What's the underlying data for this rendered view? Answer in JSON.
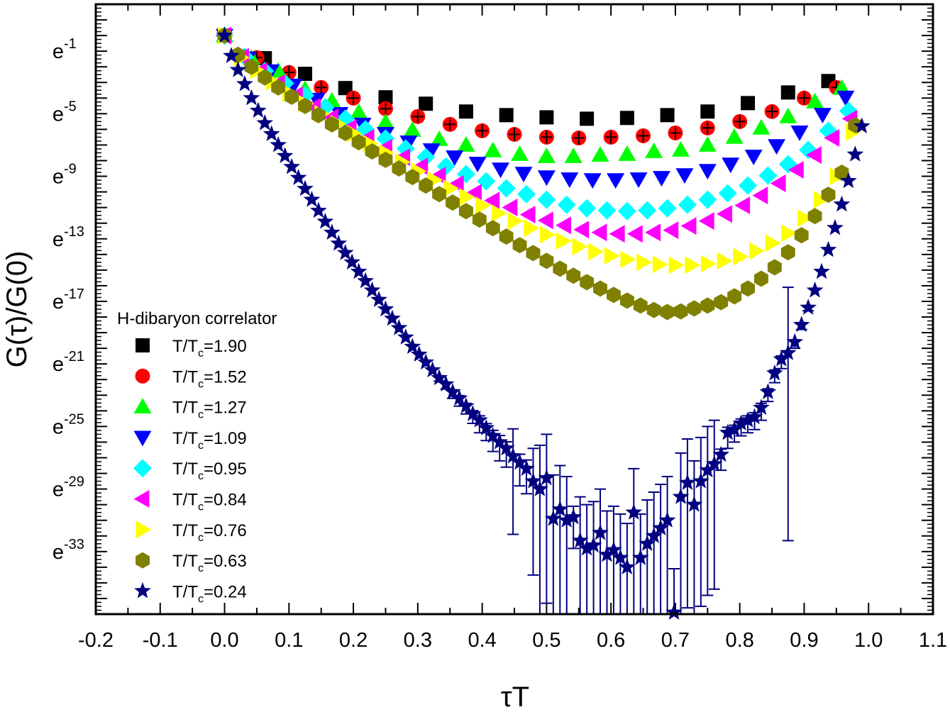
{
  "chart_data": {
    "type": "scatter",
    "title": "",
    "xlabel": "τT",
    "ylabel": "G(τ)/G(0)",
    "y_scale": "log_e",
    "y_value_units": "natural-log exponent n, where G(τ)/G(0) = e^n",
    "xlim": [
      -0.2,
      1.1
    ],
    "ylim_exponent": [
      -37,
      2
    ],
    "x_ticks": [
      "-0.2",
      "-0.1",
      "0.0",
      "0.1",
      "0.2",
      "0.3",
      "0.4",
      "0.5",
      "0.6",
      "0.7",
      "0.8",
      "0.9",
      "1.0",
      "1.1"
    ],
    "x_tick_values": [
      -0.2,
      -0.1,
      0.0,
      0.1,
      0.2,
      0.3,
      0.4,
      0.5,
      0.6,
      0.7,
      0.8,
      0.9,
      1.0,
      1.1
    ],
    "y_ticks": [
      {
        "base": "e",
        "exp": "-1",
        "value": -1
      },
      {
        "base": "e",
        "exp": "-5",
        "value": -5
      },
      {
        "base": "e",
        "exp": "-9",
        "value": -9
      },
      {
        "base": "e",
        "exp": "-13",
        "value": -13
      },
      {
        "base": "e",
        "exp": "-17",
        "value": -17
      },
      {
        "base": "e",
        "exp": "-21",
        "value": -21
      },
      {
        "base": "e",
        "exp": "-25",
        "value": -25
      },
      {
        "base": "e",
        "exp": "-29",
        "value": -29
      },
      {
        "base": "e",
        "exp": "-33",
        "value": -33
      }
    ],
    "grid": false,
    "legend": {
      "title": "H-dibaryon correlator",
      "placement": "lower-left",
      "entry_prefix": "T/T",
      "entry_sub": "c"
    },
    "series": [
      {
        "name": "T/Tc=1.90",
        "label_value": "=1.90",
        "marker": "square",
        "color": "#000000",
        "n_t": 16,
        "values": [
          0,
          -1.45,
          -2.45,
          -3.36,
          -3.95,
          -4.36,
          -4.86,
          -5.09,
          -5.23,
          -5.32,
          -5.27,
          -5.09,
          -4.86,
          -4.32,
          -3.64,
          -2.91
        ]
      },
      {
        "name": "T/Tc=1.52",
        "label_value": "=1.52",
        "marker": "circle",
        "color": "#ff0000",
        "n_t": 20,
        "errbar_color": "#000000",
        "values": [
          0,
          -1.41,
          -2.36,
          -3.32,
          -4.0,
          -4.68,
          -5.18,
          -5.68,
          -6.09,
          -6.32,
          -6.5,
          -6.55,
          -6.5,
          -6.41,
          -6.23,
          -5.91,
          -5.5,
          -4.86,
          -4.0,
          -3.32
        ]
      },
      {
        "name": "T/Tc=1.27",
        "label_value": "=1.27",
        "marker": "triangle-up",
        "color": "#00ff00",
        "n_t": 24,
        "values": [
          0,
          -1.45,
          -2.27,
          -3.45,
          -4.18,
          -4.91,
          -5.55,
          -6.05,
          -6.64,
          -7.0,
          -7.36,
          -7.59,
          -7.73,
          -7.73,
          -7.64,
          -7.59,
          -7.41,
          -7.32,
          -7.0,
          -6.5,
          -5.91,
          -5.18,
          -4.23,
          -3.36
        ]
      },
      {
        "name": "T/Tc=1.09",
        "label_value": "=1.09",
        "marker": "triangle-down",
        "color": "#0000ff",
        "n_t": 28,
        "values": [
          0,
          -1.45,
          -2.27,
          -3.18,
          -4.09,
          -5.0,
          -5.68,
          -6.27,
          -6.82,
          -7.32,
          -7.77,
          -8.18,
          -8.55,
          -8.82,
          -9.05,
          -9.18,
          -9.23,
          -9.23,
          -9.18,
          -9.09,
          -8.91,
          -8.64,
          -8.23,
          -7.73,
          -7.05,
          -6.18,
          -5.05,
          -3.95
        ]
      },
      {
        "name": "T/Tc=0.95",
        "label_value": "=0.95",
        "marker": "diamond",
        "color": "#00ffff",
        "n_t": 32,
        "values": [
          0,
          -1.36,
          -2.27,
          -3.05,
          -3.82,
          -4.59,
          -5.32,
          -6.0,
          -6.59,
          -7.23,
          -7.77,
          -8.36,
          -8.86,
          -9.32,
          -9.77,
          -10.14,
          -10.5,
          -10.82,
          -11.05,
          -11.18,
          -11.23,
          -11.18,
          -11.05,
          -10.82,
          -10.5,
          -10.09,
          -9.59,
          -8.95,
          -8.23,
          -7.32,
          -6.09,
          -4.82
        ]
      },
      {
        "name": "T/Tc=0.84",
        "label_value": "=0.84",
        "marker": "triangle-left",
        "color": "#ff00ff",
        "n_t": 36,
        "values": [
          0,
          -1.36,
          -2.27,
          -3.05,
          -3.82,
          -4.55,
          -5.23,
          -5.91,
          -6.55,
          -7.18,
          -7.77,
          -8.36,
          -8.95,
          -9.5,
          -10.05,
          -10.55,
          -11.0,
          -11.45,
          -11.82,
          -12.14,
          -12.41,
          -12.59,
          -12.68,
          -12.68,
          -12.59,
          -12.45,
          -12.18,
          -11.86,
          -11.41,
          -10.86,
          -10.23,
          -9.45,
          -8.59,
          -7.64,
          -6.55,
          -5.32
        ]
      },
      {
        "name": "T/Tc=0.76",
        "label_value": "=0.76",
        "marker": "triangle-right",
        "color": "#ffff00",
        "n_t": 40,
        "values": [
          0,
          -1.41,
          -2.23,
          -2.95,
          -3.68,
          -4.36,
          -5.0,
          -5.64,
          -6.27,
          -6.91,
          -7.5,
          -8.09,
          -8.68,
          -9.23,
          -9.77,
          -10.32,
          -10.86,
          -11.36,
          -11.86,
          -12.32,
          -12.73,
          -13.14,
          -13.5,
          -13.82,
          -14.09,
          -14.32,
          -14.5,
          -14.64,
          -14.68,
          -14.68,
          -14.59,
          -14.41,
          -14.14,
          -13.77,
          -13.27,
          -12.64,
          -11.68,
          -10.5,
          -9.0,
          -6.18
        ]
      },
      {
        "name": "T/Tc=0.63",
        "label_value": "=0.63",
        "marker": "hexagon",
        "color": "#808000",
        "n_t": 48,
        "values": [
          0,
          -1.23,
          -2.0,
          -2.68,
          -3.32,
          -3.91,
          -4.5,
          -5.09,
          -5.68,
          -6.23,
          -6.82,
          -7.41,
          -7.95,
          -8.5,
          -9.05,
          -9.59,
          -10.14,
          -10.68,
          -11.23,
          -11.77,
          -12.32,
          -12.86,
          -13.41,
          -13.91,
          -14.41,
          -14.91,
          -15.36,
          -15.77,
          -16.18,
          -16.59,
          -16.95,
          -17.27,
          -17.55,
          -17.68,
          -17.64,
          -17.45,
          -17.27,
          -17.05,
          -16.68,
          -16.18,
          -15.55,
          -14.82,
          -13.86,
          -12.77,
          -11.55,
          -10.18,
          -8.77,
          -5.73
        ]
      },
      {
        "name": "T/Tc=0.24",
        "label_value": "=0.24",
        "marker": "star",
        "color": "#000080",
        "n_t": 96,
        "values": [
          0,
          -1.3,
          -2.2,
          -3.1,
          -4.0,
          -4.8,
          -5.6,
          -6.3,
          -7.0,
          -7.7,
          -8.4,
          -9.1,
          -9.8,
          -10.5,
          -11.2,
          -11.9,
          -12.6,
          -13.3,
          -13.9,
          -14.5,
          -15.1,
          -15.7,
          -16.3,
          -16.9,
          -17.5,
          -18.1,
          -18.7,
          -19.3,
          -19.9,
          -20.4,
          -20.9,
          -21.4,
          -21.9,
          -22.3,
          -22.8,
          -23.2,
          -23.7,
          -24.2,
          -24.6,
          -25.1,
          -25.6,
          -26.0,
          -26.4,
          -26.9,
          -27.3,
          -27.7,
          -28.5,
          -29.0,
          -28.3,
          -30.9,
          -30.3,
          -31.0,
          -30.8,
          -32.3,
          -32.8,
          -32.6,
          -31.8,
          -33.2,
          -32.9,
          -33.4,
          -34.0,
          -30.5,
          -33.4,
          -32.5,
          -32.0,
          -31.5,
          -31.0,
          -36.9,
          -29.5,
          -28.6,
          -30.0,
          -28.5,
          -27.8,
          -27.4,
          -26.8,
          -25.4,
          -25.2,
          -24.8,
          -24.6,
          -24.4,
          -23.8,
          -22.8,
          -21.6,
          -20.7,
          -20.3,
          -19.6,
          -18.5,
          -17.4,
          -16.3,
          -15.1,
          -13.7,
          -12.3,
          -10.8,
          -9.3,
          -7.6,
          -5.8
        ],
        "errors": [
          0,
          0,
          0,
          0,
          0,
          0,
          0,
          0,
          0,
          0,
          0,
          0,
          0,
          0,
          0,
          0,
          0,
          0,
          0,
          0,
          0,
          0,
          0,
          0,
          0,
          0,
          0,
          0,
          0,
          0,
          0,
          0,
          0.2,
          0.3,
          0.4,
          0.5,
          0.5,
          0.6,
          0.8,
          0.8,
          1.0,
          1.2,
          1.2,
          5.0,
          1.5,
          1.6,
          6.0,
          8.0,
          8.0,
          8.0,
          8.0,
          8.0,
          2.0,
          8.0,
          8.0,
          8.0,
          8.0,
          8.0,
          8.0,
          8.0,
          8.0,
          8.0,
          8.0,
          8.0,
          8.0,
          8.0,
          8.0,
          8.0,
          8.0,
          8.0,
          8.0,
          8.0,
          8.0,
          8.0,
          1.0,
          1.0,
          0.8,
          0.8,
          0.8,
          0.8,
          0.8,
          0.6,
          0.6,
          0.6,
          12.0,
          0.4,
          0.3,
          0.2,
          0,
          0,
          0,
          0,
          0,
          0,
          0,
          0
        ]
      }
    ]
  }
}
